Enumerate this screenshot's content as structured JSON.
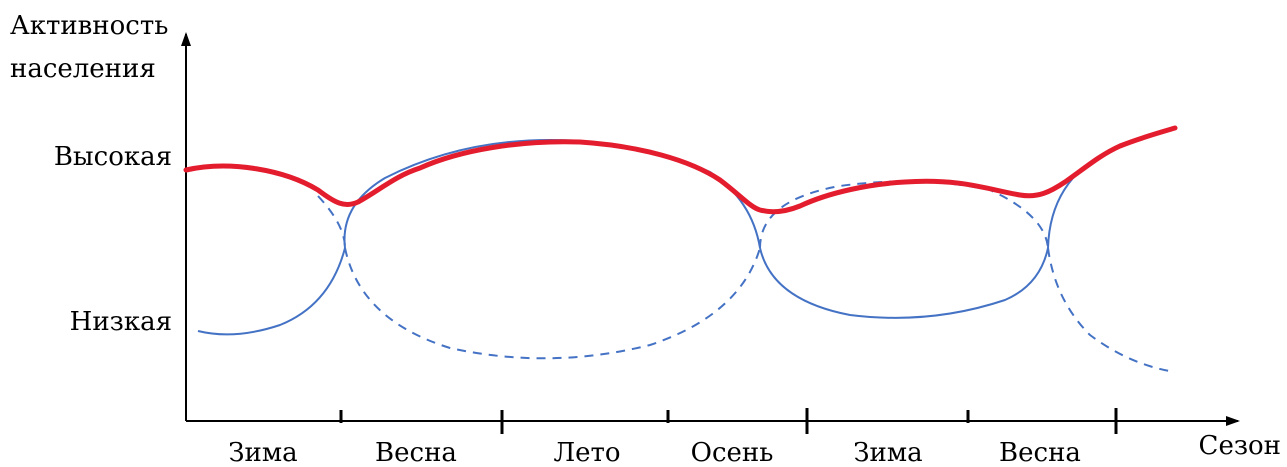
{
  "y_axis": {
    "title_line1": "Активность",
    "title_line2": "населения",
    "levels": {
      "high": "Высокая",
      "low": "Низкая"
    }
  },
  "x_axis": {
    "title": "Сезон",
    "seasons": [
      "Зима",
      "Весна",
      "Лето",
      "Осень",
      "Зима",
      "Весна"
    ]
  },
  "colors": {
    "axis": "#000000",
    "cycle_curves": "#4472c4",
    "total_activity": "#e41d2e"
  }
}
